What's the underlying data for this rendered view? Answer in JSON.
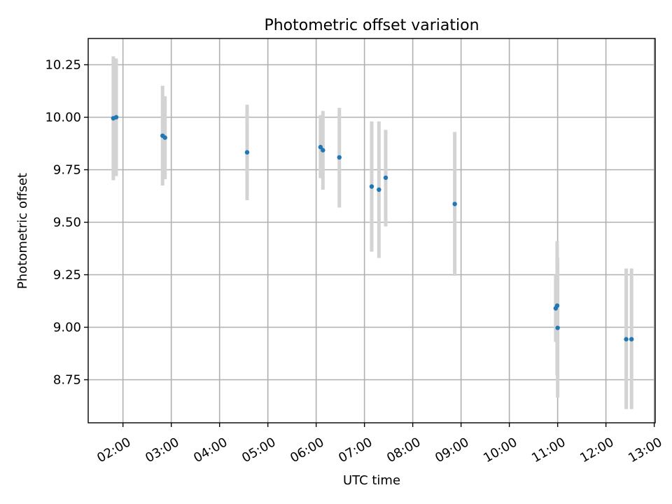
{
  "chart_data": {
    "type": "scatter",
    "title": "Photometric offset variation",
    "xlabel": "UTC time",
    "ylabel": "Photometric offset",
    "x_unit": "hours UTC",
    "xlim": [
      1.28,
      13.02
    ],
    "ylim": [
      8.545,
      10.375
    ],
    "xticks": [
      {
        "value": 2,
        "label": "02:00"
      },
      {
        "value": 3,
        "label": "03:00"
      },
      {
        "value": 4,
        "label": "04:00"
      },
      {
        "value": 5,
        "label": "05:00"
      },
      {
        "value": 6,
        "label": "06:00"
      },
      {
        "value": 7,
        "label": "07:00"
      },
      {
        "value": 8,
        "label": "08:00"
      },
      {
        "value": 9,
        "label": "09:00"
      },
      {
        "value": 10,
        "label": "10:00"
      },
      {
        "value": 11,
        "label": "11:00"
      },
      {
        "value": 12,
        "label": "12:00"
      },
      {
        "value": 13,
        "label": "13:00"
      }
    ],
    "yticks": [
      {
        "value": 8.75,
        "label": "8.75"
      },
      {
        "value": 9.0,
        "label": "9.00"
      },
      {
        "value": 9.25,
        "label": "9.25"
      },
      {
        "value": 9.5,
        "label": "9.50"
      },
      {
        "value": 9.75,
        "label": "9.75"
      },
      {
        "value": 10.0,
        "label": "10.00"
      },
      {
        "value": 10.25,
        "label": "10.25"
      }
    ],
    "grid": true,
    "point_color": "#1f77b4",
    "errorbar_color": "#d3d3d3",
    "points": [
      {
        "x": 1.8,
        "y": 9.995,
        "yerr_low": 9.7,
        "yerr_high": 10.29
      },
      {
        "x": 1.86,
        "y": 10.0,
        "yerr_low": 9.72,
        "yerr_high": 10.28
      },
      {
        "x": 2.82,
        "y": 9.912,
        "yerr_low": 9.675,
        "yerr_high": 10.15
      },
      {
        "x": 2.87,
        "y": 9.903,
        "yerr_low": 9.705,
        "yerr_high": 10.1
      },
      {
        "x": 4.57,
        "y": 9.833,
        "yerr_low": 9.605,
        "yerr_high": 10.06
      },
      {
        "x": 6.09,
        "y": 9.858,
        "yerr_low": 9.71,
        "yerr_high": 10.01
      },
      {
        "x": 6.14,
        "y": 9.843,
        "yerr_low": 9.655,
        "yerr_high": 10.03
      },
      {
        "x": 6.48,
        "y": 9.809,
        "yerr_low": 9.57,
        "yerr_high": 10.045
      },
      {
        "x": 7.15,
        "y": 9.67,
        "yerr_low": 9.36,
        "yerr_high": 9.98
      },
      {
        "x": 7.3,
        "y": 9.655,
        "yerr_low": 9.33,
        "yerr_high": 9.98
      },
      {
        "x": 7.44,
        "y": 9.712,
        "yerr_low": 9.48,
        "yerr_high": 9.94
      },
      {
        "x": 8.87,
        "y": 9.587,
        "yerr_low": 9.245,
        "yerr_high": 9.93
      },
      {
        "x": 10.96,
        "y": 9.09,
        "yerr_low": 8.93,
        "yerr_high": 9.25
      },
      {
        "x": 10.99,
        "y": 9.103,
        "yerr_low": 8.77,
        "yerr_high": 9.41
      },
      {
        "x": 11.0,
        "y": 8.997,
        "yerr_low": 8.665,
        "yerr_high": 9.33
      },
      {
        "x": 12.42,
        "y": 8.943,
        "yerr_low": 8.61,
        "yerr_high": 9.28
      },
      {
        "x": 12.53,
        "y": 8.943,
        "yerr_low": 8.61,
        "yerr_high": 9.28
      }
    ]
  }
}
